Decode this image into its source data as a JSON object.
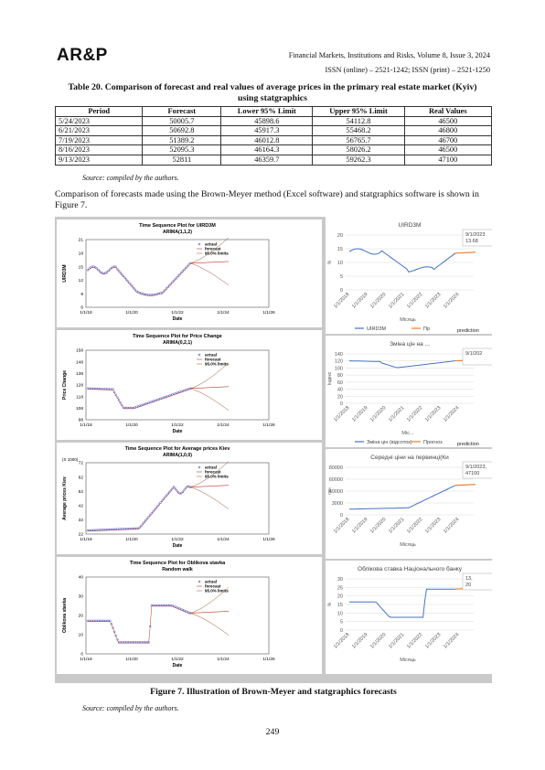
{
  "header": {
    "logo": "AR&P",
    "journal": "Financial Markets, Institutions and Risks, Volume 8, Issue 3, 2024",
    "issn": "ISSN (online) – 2521-1242; ISSN (print) – 2521-1250"
  },
  "table": {
    "caption": "Table 20. Comparison of forecast and real values of average prices in the primary real estate market (Kyiv) using statgraphics",
    "columns": [
      "Period",
      "Forecast",
      "Lower 95% Limit",
      "Upper 95% Limit",
      "Real Values"
    ],
    "rows": [
      [
        "5/24/2023",
        "50005.7",
        "45898.6",
        "54112.8",
        "46500"
      ],
      [
        "6/21/2023",
        "50692.8",
        "45917.3",
        "55468.2",
        "46800"
      ],
      [
        "7/19/2023",
        "51389.2",
        "46012.8",
        "56765.7",
        "46700"
      ],
      [
        "8/16/2023",
        "52095.3",
        "46164.3",
        "58026.2",
        "46500"
      ],
      [
        "9/13/2023",
        "52811",
        "46359.7",
        "59262.3",
        "47100"
      ]
    ],
    "source": "Source: compiled by the authors."
  },
  "paragraph": "Comparison of forecasts made using the Brown-Meyer method (Excel software) and statgraphics software is shown in Figure 7.",
  "figure": {
    "caption": "Figure 7. Illustration of Brown-Meyer and statgraphics forecasts",
    "source": "Source: compiled by the authors.",
    "left_panels": [
      {
        "title": "Time Sequence Plot for UIRD3M",
        "subtitle": "ARIMA(1,1,2)",
        "ylabel": "UIRD3M",
        "xlabel": "Date",
        "yticks": [
          "21",
          "18",
          "15",
          "12",
          "9",
          "6"
        ],
        "xticks": [
          "1/1/18",
          "1/1/20",
          "1/1/22",
          "1/1/24",
          "1/1/26"
        ],
        "legend": [
          "actual",
          "forecast",
          "95.0% limits"
        ]
      },
      {
        "title": "Time Sequence Plot for Price Change",
        "subtitle": "ARIMA(0,2,1)",
        "ylabel": "Price Change",
        "xlabel": "Date",
        "yticks": [
          "158",
          "148",
          "138",
          "128",
          "118",
          "108",
          "98"
        ],
        "xticks": [
          "1/1/18",
          "1/1/20",
          "1/1/22",
          "1/1/24",
          "1/1/26"
        ],
        "legend": [
          "actual",
          "forecast",
          "95.0% limits"
        ]
      },
      {
        "title": "Time Sequence Plot for Average prices Kiev",
        "subtitle": "ARIMA(1,0,0)",
        "ylabel": "Average prices Kiev",
        "xlabel": "Date",
        "ymult": "(X 1000)",
        "yticks": [
          "72",
          "62",
          "52",
          "42",
          "32",
          "22"
        ],
        "xticks": [
          "1/1/18",
          "1/1/20",
          "1/1/22",
          "1/1/24",
          "1/1/26"
        ],
        "legend": [
          "actual",
          "forecast",
          "95.0% limits"
        ]
      },
      {
        "title": "Time Sequence Plot for Oblikova stavka",
        "subtitle": "Random walk",
        "ylabel": "Oblikova stavka",
        "xlabel": "Date",
        "yticks": [
          "40",
          "30",
          "20",
          "10",
          "0"
        ],
        "xticks": [
          "1/1/18",
          "1/1/20",
          "1/1/22",
          "1/1/24",
          "1/1/26"
        ],
        "legend": [
          "actual",
          "forecast",
          "95.0% limits"
        ]
      }
    ],
    "right_panels": [
      {
        "title": "UIRD3M",
        "ylabel": "%",
        "xlabel": "Місяць",
        "yticks": [
          "20",
          "15",
          "10",
          "5",
          "0"
        ],
        "callout": [
          "9/1/2023",
          "13.68"
        ],
        "legend": [
          "UIRD3M",
          "Пр"
        ],
        "note": "prediction"
      },
      {
        "title": "Зміна цін на ...",
        "ylabel": "Індекс",
        "xlabel": "Міс...",
        "yticks": [
          "140",
          "120",
          "100",
          "80",
          "60",
          "40",
          "20",
          "0"
        ],
        "callout": [
          "9/1/202"
        ],
        "legend": [
          "Зміна цін (відсоток)",
          "Прогноз"
        ],
        "note": "prediction"
      },
      {
        "title": "Середні ціни на первинці(Ки",
        "ylabel": "грн",
        "xlabel": "Місяць",
        "yticks": [
          "80000",
          "60000",
          "40000",
          "3000",
          "0"
        ],
        "callout": [
          "9/1/2023,",
          "47100"
        ],
        "legend": [],
        "note": ""
      },
      {
        "title": "Облікова ставка Національного банку",
        "ylabel": "%",
        "xlabel": "Місяць",
        "yticks": [
          "30",
          "25",
          "20",
          "15",
          "10",
          "5",
          "0"
        ],
        "callout": [
          "13,",
          "20"
        ],
        "legend": [],
        "note": ""
      }
    ],
    "excel_xticks": [
      "1/1/2018",
      "1/1/2019",
      "1/1/2020",
      "1/1/2021",
      "1/1/2022",
      "1/1/2023",
      "1/1/2024"
    ]
  },
  "page_number": "249"
}
